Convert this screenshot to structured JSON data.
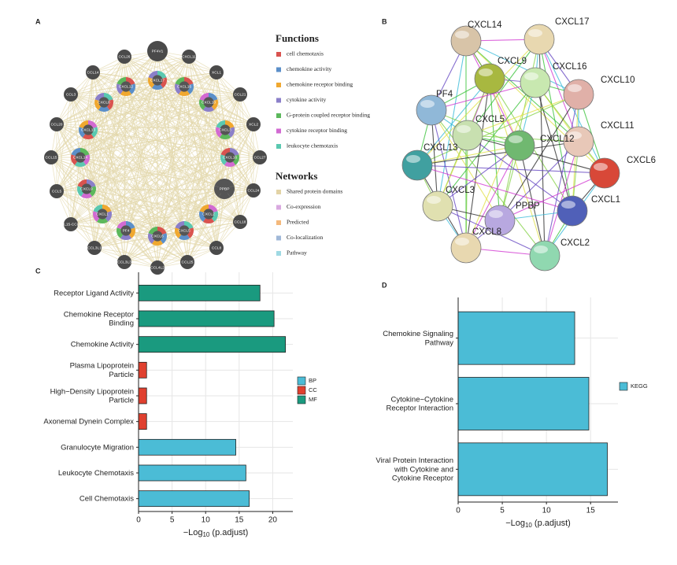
{
  "network_a": {
    "label": "A",
    "nodes": [
      "PF4V1",
      "CXCL11",
      "XCL1",
      "CCL21",
      "XCL2",
      "CCL27",
      "CCL24",
      "CCL18",
      "CCL8",
      "CCL25",
      "CCL4L2",
      "CCL3L3",
      "CCL3L1",
      "CCL15-CCL14",
      "CCL5",
      "CCL15",
      "CCL20",
      "CCL3",
      "CCL14",
      "CCL26",
      "CXCL17",
      "CXCL16",
      "CXCL10",
      "CXCL3",
      "CXCL16",
      "PPBP",
      "CXCL2",
      "CXCL5",
      "CXCL6",
      "PF4",
      "CXCL1",
      "CXCL9",
      "CXCL14",
      "CXCL13",
      "CXCL8",
      "CXCL12"
    ],
    "functions": {
      "title": "Functions",
      "items": [
        {
          "name": "cell chemotaxis",
          "color": "#d9534f"
        },
        {
          "name": "chemokine activity",
          "color": "#5b8fc9"
        },
        {
          "name": "chemokine receptor binding",
          "color": "#f0a830"
        },
        {
          "name": "cytokine activity",
          "color": "#8b7fc9"
        },
        {
          "name": "G-protein coupled receptor binding",
          "color": "#5cb85c"
        },
        {
          "name": "cytokine receptor binding",
          "color": "#d26ad2"
        },
        {
          "name": "leukocyte chemotaxis",
          "color": "#5ac8b0"
        }
      ]
    },
    "networks": {
      "title": "Networks",
      "items": [
        {
          "name": "Shared protein domains",
          "color": "#e3d3a6"
        },
        {
          "name": "Co-expression",
          "color": "#d9a9e0"
        },
        {
          "name": "Predicted",
          "color": "#f4b97c"
        },
        {
          "name": "Co-localization",
          "color": "#a0b8d8"
        },
        {
          "name": "Pathway",
          "color": "#9fd9e3"
        }
      ]
    }
  },
  "network_b": {
    "label": "B",
    "nodes": [
      {
        "label": "CXCL14",
        "color": "#d8c4a8"
      },
      {
        "label": "CXCL17",
        "color": "#e8d8b0"
      },
      {
        "label": "CXCL9",
        "color": "#a8b840"
      },
      {
        "label": "CXCL16",
        "color": "#c8e8b0"
      },
      {
        "label": "CXCL10",
        "color": "#e0b0a8"
      },
      {
        "label": "PF4",
        "color": "#90b8d8"
      },
      {
        "label": "CXCL5",
        "color": "#c8e0b0"
      },
      {
        "label": "CXCL11",
        "color": "#e8c8b8"
      },
      {
        "label": "CXCL12",
        "color": "#70b870"
      },
      {
        "label": "CXCL13",
        "color": "#40a0a0"
      },
      {
        "label": "CXCL6",
        "color": "#d84838"
      },
      {
        "label": "CXCL3",
        "color": "#e0e0b0"
      },
      {
        "label": "PPBP",
        "color": "#b8a8e0"
      },
      {
        "label": "CXCL1",
        "color": "#5060b8"
      },
      {
        "label": "CXCL8",
        "color": "#e8d8b0"
      },
      {
        "label": "CXCL2",
        "color": "#90d8b0"
      }
    ]
  },
  "chart_data": [
    {
      "type": "bar",
      "orientation": "horizontal",
      "label": "C",
      "categories": [
        "Receptor Ligand Activity",
        "Chemokine Receptor Binding",
        "Chemokine Activity",
        "Plasma Lipoprotein Particle",
        "High−Density Lipoprotein Particle",
        "Axonemal Dynein Complex",
        "Granulocyte Migration",
        "Leukocyte Chemotaxis",
        "Cell Chemotaxis"
      ],
      "series": [
        {
          "name": "BP",
          "color": "#4bbcd6",
          "values": [
            null,
            null,
            null,
            null,
            null,
            null,
            14.5,
            16,
            16.5
          ]
        },
        {
          "name": "CC",
          "color": "#e0402f",
          "values": [
            null,
            null,
            null,
            1.2,
            1.2,
            1.2,
            null,
            null,
            null
          ]
        },
        {
          "name": "MF",
          "color": "#1a9a7f",
          "values": [
            18.1,
            20.2,
            21.9,
            null,
            null,
            null,
            null,
            null,
            null
          ]
        }
      ],
      "xlim": [
        0,
        23
      ],
      "xticks": [
        0,
        5,
        10,
        15,
        20
      ],
      "xlabel": "−Log10 (p.adjust)",
      "grid": true
    },
    {
      "type": "bar",
      "orientation": "horizontal",
      "label": "D",
      "categories": [
        "Chemokine Signaling Pathway",
        "Cytokine−Cytokine Receptor Interaction",
        "Viral Protein Interaction with Cytokine and Cytokine Receptor"
      ],
      "series": [
        {
          "name": "KEGG",
          "color": "#4bbcd6",
          "values": [
            13.2,
            14.8,
            16.9
          ]
        }
      ],
      "xlim": [
        0,
        18.1
      ],
      "xticks": [
        0,
        5,
        10,
        15
      ],
      "xlabel": "−Log10 (p.adjust)",
      "grid": true
    }
  ]
}
